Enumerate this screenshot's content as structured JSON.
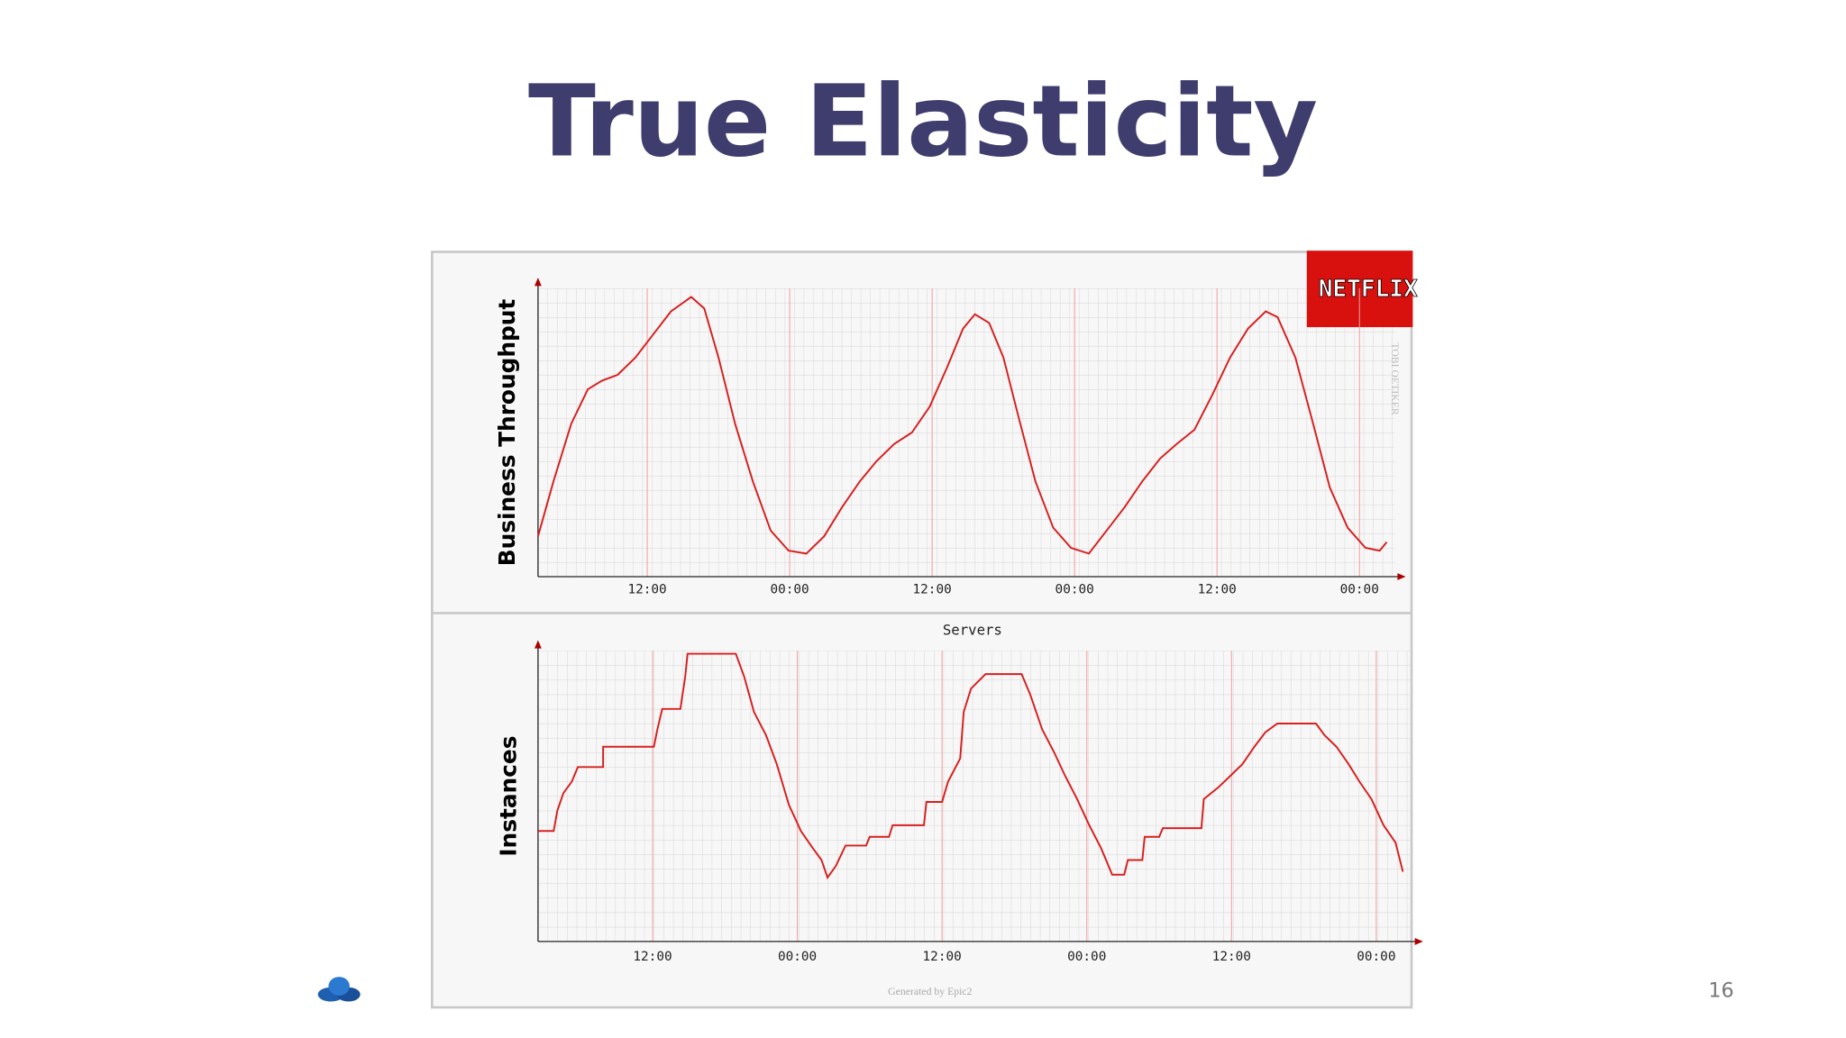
{
  "slide": {
    "title": "True Elasticity",
    "page_number": "16",
    "logo": "NETFLIX"
  },
  "chart_data": [
    {
      "type": "line",
      "y_label": "Business Throughput",
      "watermark": "TOBI OETIKER",
      "xlim": [
        2.8,
        75
      ],
      "ylim": [
        0,
        100
      ],
      "grid": true,
      "xticks": [
        {
          "value": 12,
          "label": "12:00"
        },
        {
          "value": 24,
          "label": "00:00"
        },
        {
          "value": 36,
          "label": "12:00"
        },
        {
          "value": 48,
          "label": "00:00"
        },
        {
          "value": 60,
          "label": "12:00"
        },
        {
          "value": 72,
          "label": "00:00"
        }
      ],
      "series": [
        {
          "color": "#d62020",
          "x": [
            2.8,
            4.1,
            5.6,
            7.0,
            8.2,
            9.5,
            11.0,
            12.5,
            14.0,
            15.7,
            16.8,
            18.0,
            19.4,
            20.9,
            22.4,
            23.9,
            25.4,
            26.9,
            28.4,
            29.9,
            31.3,
            32.8,
            34.3,
            35.8,
            37.3,
            38.6,
            39.6,
            40.8,
            42.0,
            43.3,
            44.7,
            46.2,
            47.7,
            49.2,
            50.7,
            52.2,
            53.7,
            55.2,
            56.6,
            58.1,
            59.6,
            61.1,
            62.6,
            64.1,
            65.1,
            66.6,
            68.1,
            69.5,
            71.0,
            72.5,
            73.7,
            74.3
          ],
          "values": [
            14,
            33,
            53,
            65,
            68,
            70,
            76,
            84,
            92,
            97,
            93,
            76,
            53,
            33,
            16,
            9,
            8,
            14,
            24,
            33,
            40,
            46,
            50,
            59,
            73,
            86,
            91,
            88,
            76,
            55,
            33,
            17,
            10,
            8,
            16,
            24,
            33,
            41,
            46,
            51,
            63,
            76,
            86,
            92,
            90,
            76,
            53,
            31,
            17,
            10,
            9,
            12
          ]
        }
      ]
    },
    {
      "type": "line",
      "title": "Servers",
      "y_label": "Instances",
      "footer": "Generated by Epic2",
      "xlim": [
        2.5,
        75
      ],
      "ylim": [
        0,
        100
      ],
      "grid": true,
      "xticks": [
        {
          "value": 12,
          "label": "12:00"
        },
        {
          "value": 24,
          "label": "00:00"
        },
        {
          "value": 36,
          "label": "12:00"
        },
        {
          "value": 48,
          "label": "00:00"
        },
        {
          "value": 60,
          "label": "12:00"
        },
        {
          "value": 72,
          "label": "00:00"
        }
      ],
      "series": [
        {
          "color": "#d62020",
          "x": [
            2.5,
            2.8,
            3.8,
            4.1,
            4.6,
            5.3,
            5.8,
            7.9,
            7.9,
            12.1,
            12.4,
            12.8,
            14.3,
            14.7,
            14.9,
            18.9,
            19.6,
            20.4,
            21.4,
            22.3,
            23.3,
            24.3,
            25.3,
            26.0,
            26.5,
            27.2,
            28.0,
            29.7,
            30.0,
            31.6,
            31.9,
            34.5,
            34.7,
            36.0,
            36.5,
            37.5,
            37.8,
            38.4,
            39.6,
            42.6,
            43.3,
            44.3,
            45.3,
            46.2,
            47.2,
            48.2,
            49.2,
            50.1,
            51.1,
            51.4,
            52.6,
            52.8,
            54.0,
            54.3,
            57.5,
            57.7,
            58.9,
            59.9,
            60.9,
            61.9,
            62.8,
            63.8,
            67.0,
            67.7,
            68.7,
            69.7,
            70.6,
            71.6,
            72.6,
            73.6,
            74.2
          ],
          "values": [
            38,
            38,
            38,
            45,
            51,
            55,
            60,
            60,
            67,
            67,
            73,
            80,
            80,
            91,
            99,
            99,
            91,
            79,
            71,
            61,
            47,
            38,
            32,
            28,
            22,
            26,
            33,
            33,
            36,
            36,
            40,
            40,
            48,
            48,
            55,
            63,
            79,
            87,
            92,
            92,
            85,
            73,
            65,
            57,
            49,
            40,
            32,
            23,
            23,
            28,
            28,
            36,
            36,
            39,
            39,
            49,
            53,
            57,
            61,
            67,
            72,
            75,
            75,
            71,
            67,
            61,
            55,
            49,
            40,
            34,
            24
          ]
        }
      ]
    }
  ]
}
